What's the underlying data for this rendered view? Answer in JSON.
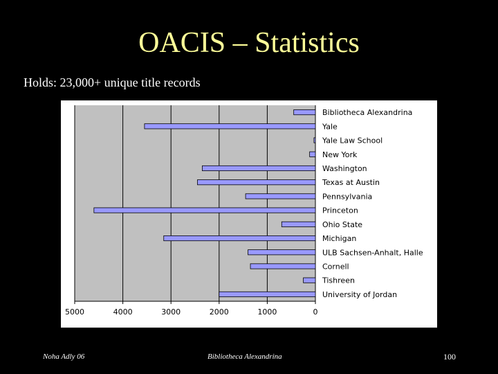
{
  "slide": {
    "title": "OACIS – Statistics",
    "subtitle": "Holds: 23,000+ unique title records",
    "footer_left": "Noha Adly 06",
    "footer_center": "Bibliotheca Alexandrina",
    "page_number": "100"
  },
  "colors": {
    "background": "#000000",
    "title": "#ffff99",
    "plot_area": "#c0c0c0",
    "bar_fill": "#9999ff",
    "chart_bg": "#ffffff"
  },
  "chart_data": {
    "type": "bar",
    "orientation": "horizontal",
    "x_reversed": true,
    "categories": [
      "Bibliotheca Alexandrina",
      "Yale",
      "Yale Law School",
      "New York",
      "Washington",
      "Texas at Austin",
      "Pennsylvania",
      "Princeton",
      "Ohio State",
      "Michigan",
      "ULB Sachsen-Anhalt, Halle",
      "Cornell",
      "Tishreen",
      "University of Jordan"
    ],
    "values": [
      450,
      3550,
      30,
      120,
      2350,
      2450,
      1450,
      4600,
      700,
      3150,
      1400,
      1350,
      250,
      2000
    ],
    "xlim": [
      0,
      5000
    ],
    "xticks": [
      "5000",
      "4000",
      "3000",
      "2000",
      "1000",
      "0"
    ],
    "grid": "vertical",
    "legend": "none"
  }
}
